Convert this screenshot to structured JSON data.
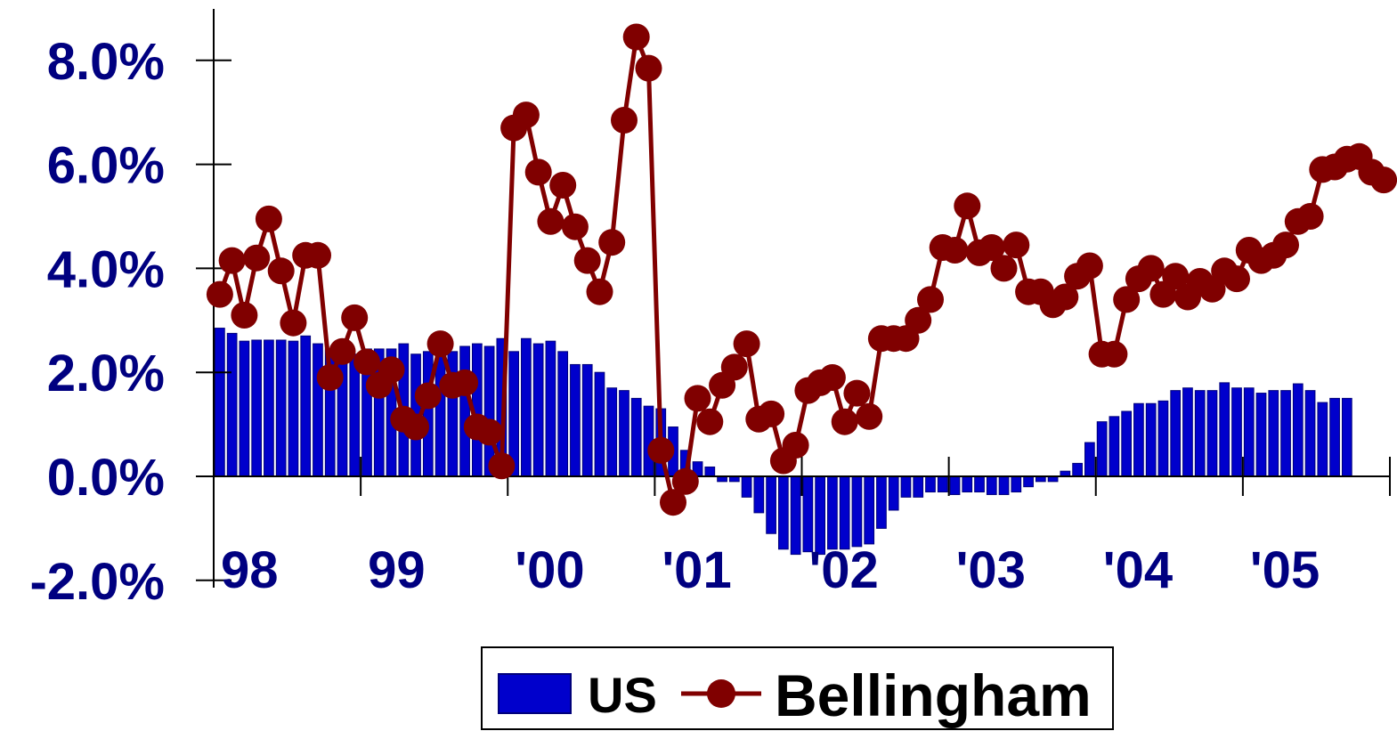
{
  "colors": {
    "us_bar": "#0000cc",
    "us_bar_edge": "#00007a",
    "bellingham_line": "#800000",
    "tick_label": "#000080",
    "axis": "#000000"
  },
  "legend": {
    "us_label": "US",
    "bellingham_label": "Bellingham"
  },
  "chart_data": {
    "type": "bar",
    "x_tick_labels": [
      "98",
      "99",
      "'00",
      "'01",
      "'02",
      "'03",
      "'04",
      "'05"
    ],
    "y_tick_labels": [
      "-2.0%",
      "0.0%",
      "2.0%",
      "4.0%",
      "6.0%",
      "8.0%"
    ],
    "y_ticks": [
      -2,
      0,
      2,
      4,
      6,
      8
    ],
    "ylim": [
      -2,
      8
    ],
    "x_range_months": [
      1998,
      2005.99
    ],
    "grid": false,
    "legend_position": "bottom",
    "series": [
      {
        "name": "US",
        "type": "bar",
        "start": "1998-01",
        "frequency": "monthly",
        "values": [
          2.85,
          2.75,
          2.6,
          2.62,
          2.62,
          2.62,
          2.6,
          2.7,
          2.55,
          2.45,
          2.3,
          2.35,
          2.45,
          2.45,
          2.45,
          2.55,
          2.35,
          2.4,
          2.45,
          2.4,
          2.5,
          2.55,
          2.5,
          2.65,
          2.4,
          2.65,
          2.55,
          2.6,
          2.4,
          2.15,
          2.15,
          2.0,
          1.7,
          1.65,
          1.5,
          1.35,
          1.3,
          0.95,
          0.5,
          0.28,
          0.18,
          -0.1,
          -0.1,
          -0.4,
          -0.7,
          -1.1,
          -1.4,
          -1.5,
          -1.45,
          -1.5,
          -1.4,
          -1.4,
          -1.35,
          -1.3,
          -1.0,
          -0.65,
          -0.4,
          -0.4,
          -0.3,
          -0.3,
          -0.35,
          -0.3,
          -0.3,
          -0.35,
          -0.35,
          -0.3,
          -0.2,
          -0.1,
          -0.1,
          0.1,
          0.25,
          0.65,
          1.05,
          1.15,
          1.25,
          1.4,
          1.4,
          1.45,
          1.65,
          1.7,
          1.65,
          1.65,
          1.8,
          1.7,
          1.7,
          1.6,
          1.65,
          1.65,
          1.78,
          1.65,
          1.42,
          1.5,
          1.5
        ]
      },
      {
        "name": "Bellingham",
        "type": "line",
        "start": "1998-01",
        "frequency": "monthly",
        "values": [
          3.5,
          4.15,
          3.1,
          4.2,
          4.95,
          3.95,
          2.95,
          4.25,
          4.25,
          1.9,
          2.4,
          3.05,
          2.2,
          1.75,
          2.05,
          1.1,
          0.95,
          1.55,
          2.55,
          1.75,
          1.8,
          0.95,
          0.85,
          0.2,
          6.7,
          6.95,
          5.85,
          4.9,
          5.6,
          4.8,
          4.15,
          3.55,
          4.5,
          6.85,
          8.45,
          7.85,
          0.5,
          -0.5,
          -0.1,
          1.5,
          1.05,
          1.75,
          2.1,
          2.55,
          1.1,
          1.2,
          0.3,
          0.6,
          1.65,
          1.8,
          1.9,
          1.05,
          1.6,
          1.15,
          2.65,
          2.65,
          2.65,
          3.0,
          3.4,
          4.4,
          4.35,
          5.2,
          4.3,
          4.4,
          4.0,
          4.45,
          3.55,
          3.55,
          3.3,
          3.45,
          3.85,
          4.05,
          2.35,
          2.35,
          3.4,
          3.8,
          4.0,
          3.5,
          3.85,
          3.45,
          3.75,
          3.6,
          3.95,
          3.8,
          4.35,
          4.15,
          4.25,
          4.45,
          4.9,
          5.0,
          5.9,
          5.95,
          6.1,
          6.15,
          5.85,
          5.7
        ]
      }
    ]
  }
}
